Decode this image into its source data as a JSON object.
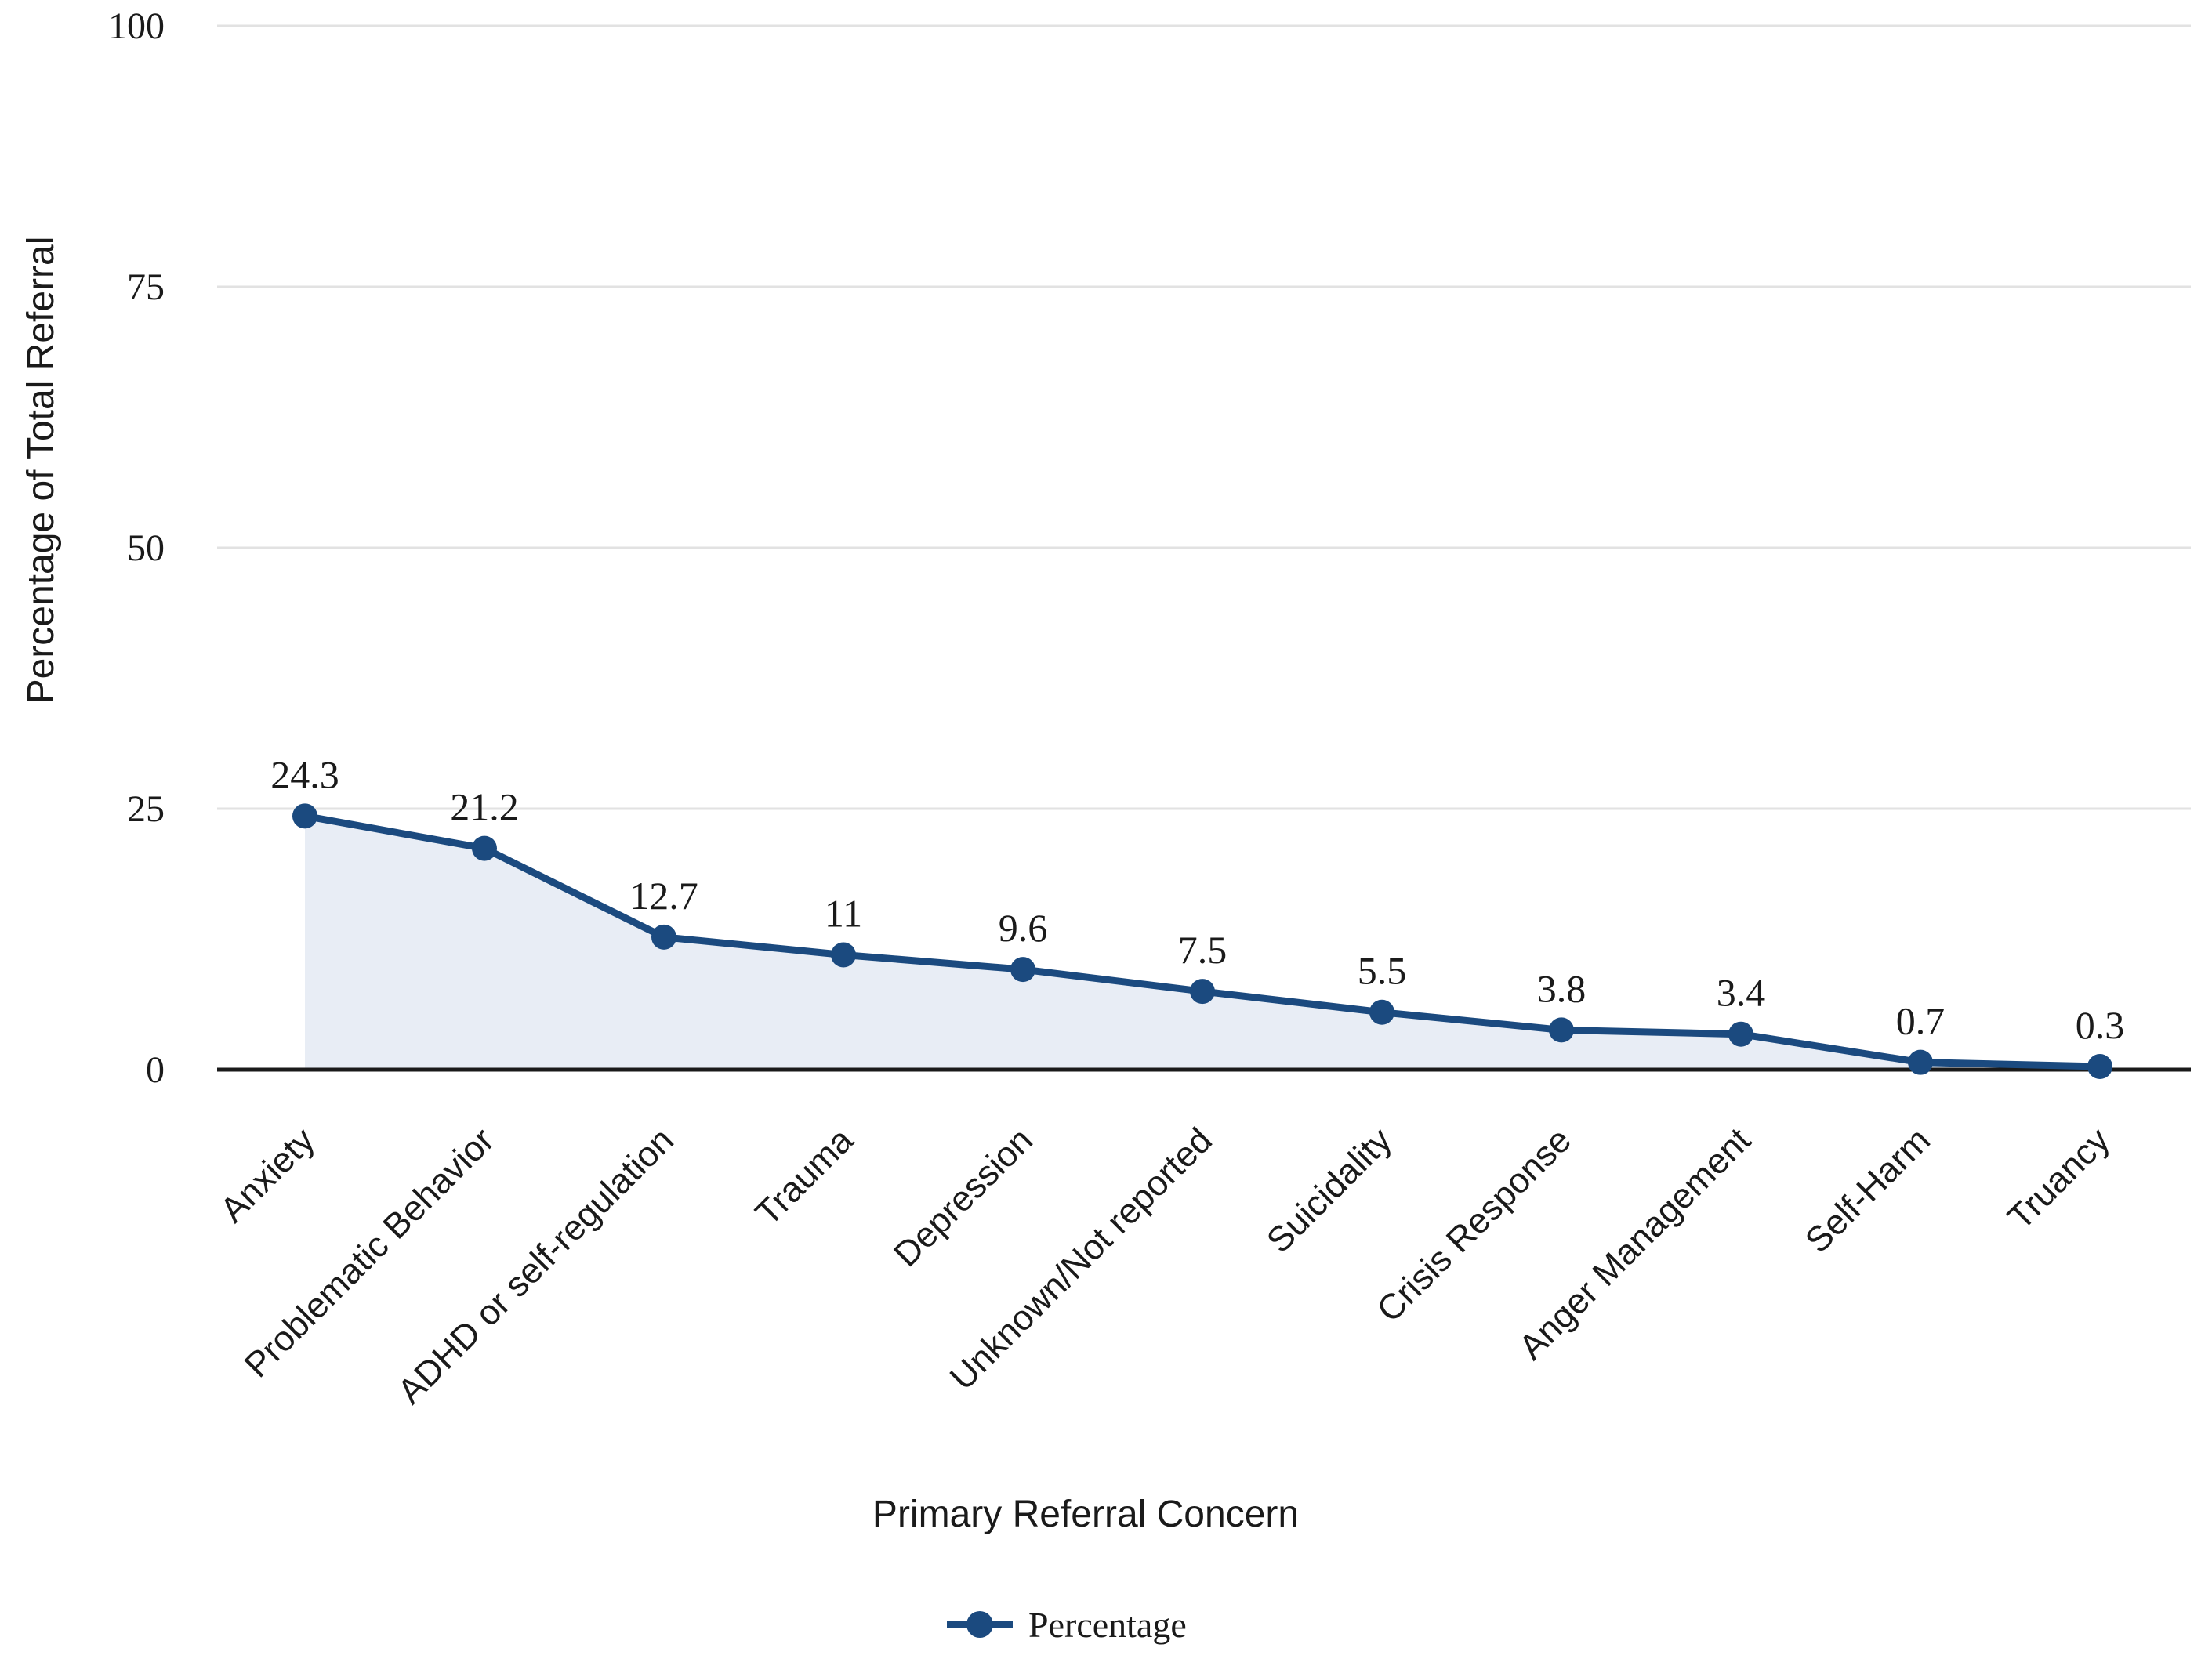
{
  "chart_data": {
    "type": "line",
    "title": "",
    "xlabel": "Primary Referral Concern",
    "ylabel": "Percentage of Total Referral",
    "categories": [
      "Anxiety",
      "Problematic Behavior",
      "ADHD or self-regulation",
      "Trauma",
      "Depression",
      "Unknown/Not reported",
      "Suicidality",
      "Crisis Response",
      "Anger Management",
      "Self-Harm",
      "Truancy"
    ],
    "series": [
      {
        "name": "Percentage",
        "values": [
          24.3,
          21.2,
          12.7,
          11,
          9.6,
          7.5,
          5.5,
          3.8,
          3.4,
          0.7,
          0.3
        ]
      }
    ],
    "data_labels": [
      "24.3",
      "21.2",
      "12.7",
      "11",
      "9.6",
      "7.5",
      "5.5",
      "3.8",
      "3.4",
      "0.7",
      "0.3"
    ],
    "ylim": [
      0,
      100
    ],
    "yticks": [
      100,
      75,
      50,
      25,
      0
    ],
    "ytick_labels": [
      "100",
      "75",
      "50",
      "25",
      "0"
    ],
    "grid": true,
    "area_fill": true,
    "marker": "circle",
    "legend_position": "bottom",
    "legend": [
      "Percentage"
    ],
    "colors": {
      "line": "#1b4a7f",
      "marker": "#1b4a7f",
      "area": "#e8edf5",
      "gridline": "#e2e2e2",
      "baseline": "#1a1a1a",
      "text": "#1a1a1a"
    }
  }
}
